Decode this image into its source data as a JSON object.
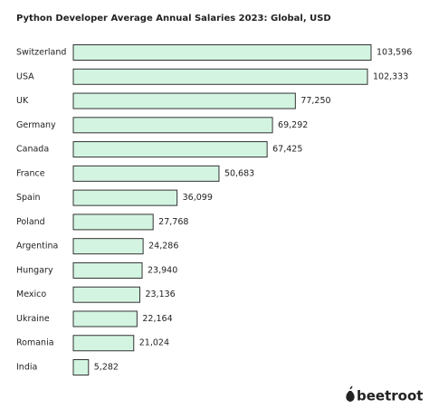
{
  "chart_data": {
    "type": "bar",
    "orientation": "horizontal",
    "title": "Python Developer Average Annual Salaries 2023: Global, USD",
    "categories": [
      "Switzerland",
      "USA",
      "UK",
      "Germany",
      "Canada",
      "France",
      "Spain",
      "Poland",
      "Argentina",
      "Hungary",
      "Mexico",
      "Ukraine",
      "Romania",
      "India"
    ],
    "values": [
      103596,
      102333,
      77250,
      69292,
      67425,
      50683,
      36099,
      27768,
      24286,
      23940,
      23136,
      22164,
      21024,
      5282
    ],
    "value_labels": [
      "103,596",
      "102,333",
      "77,250",
      "69,292",
      "67,425",
      "50,683",
      "36,099",
      "27,768",
      "24,286",
      "23,940",
      "23,136",
      "22,164",
      "21,024",
      "5,282"
    ],
    "color": "#d3f4e1",
    "edge_color": "#333333"
  },
  "brand": "beetroot"
}
